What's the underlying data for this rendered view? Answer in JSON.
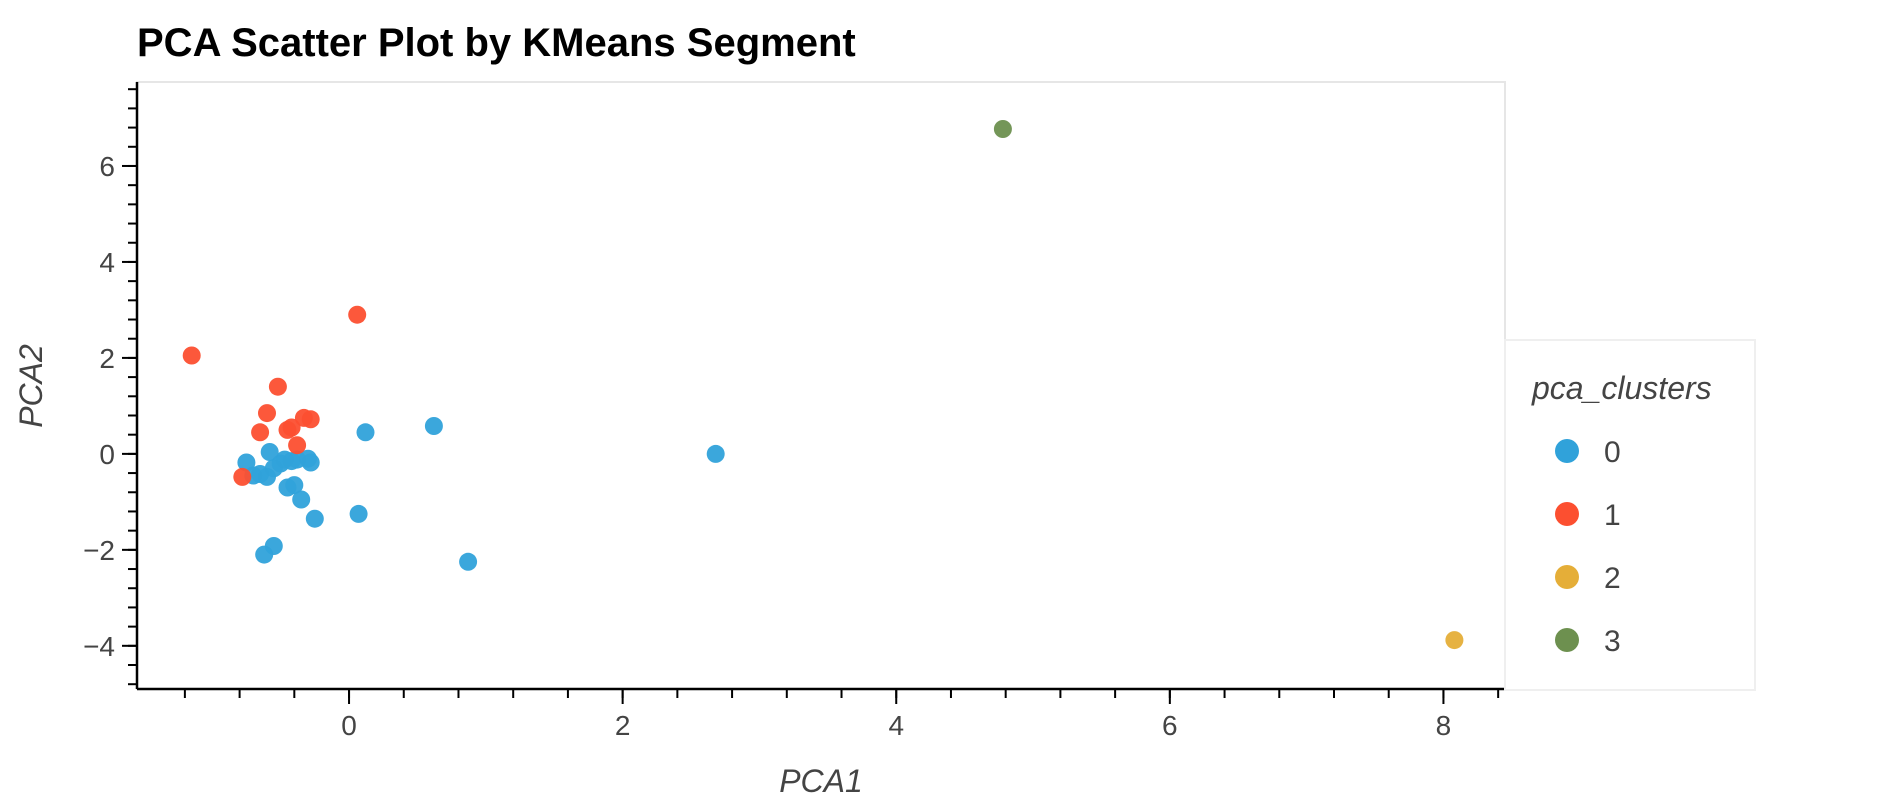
{
  "chart_data": {
    "type": "scatter",
    "title": "PCA Scatter Plot by KMeans Segment",
    "xlabel": "PCA1",
    "ylabel": "PCA2",
    "xlim": [
      -1.55,
      8.45
    ],
    "ylim": [
      -4.9,
      7.75
    ],
    "xticks": [
      0,
      2,
      4,
      6,
      8
    ],
    "yticks": [
      -4,
      -2,
      0,
      2,
      4,
      6
    ],
    "xtick_labels": [
      "0",
      "2",
      "4",
      "6",
      "8"
    ],
    "ytick_labels": [
      "−4",
      "−2",
      "0",
      "2",
      "4",
      "6"
    ],
    "grid": false,
    "legend": {
      "title": "pca_clusters",
      "placement": "right"
    },
    "series": [
      {
        "name": "0",
        "color": "#30a2da",
        "points": [
          [
            -0.75,
            -0.18
          ],
          [
            -0.7,
            -0.45
          ],
          [
            -0.65,
            -0.42
          ],
          [
            -0.6,
            -0.48
          ],
          [
            -0.58,
            0.04
          ],
          [
            -0.55,
            -0.3
          ],
          [
            -0.5,
            -0.2
          ],
          [
            -0.47,
            -0.12
          ],
          [
            -0.45,
            -0.7
          ],
          [
            -0.42,
            -0.15
          ],
          [
            -0.4,
            -0.65
          ],
          [
            -0.38,
            -0.12
          ],
          [
            -0.35,
            -0.95
          ],
          [
            -0.3,
            -0.1
          ],
          [
            -0.28,
            -0.18
          ],
          [
            -0.25,
            -1.35
          ],
          [
            0.07,
            -1.25
          ],
          [
            0.12,
            0.45
          ],
          [
            0.62,
            0.58
          ],
          [
            0.87,
            -2.25
          ],
          [
            -0.55,
            -1.92
          ],
          [
            -0.62,
            -2.1
          ],
          [
            2.68,
            0.0
          ]
        ]
      },
      {
        "name": "1",
        "color": "#fc4f30",
        "points": [
          [
            -1.15,
            2.05
          ],
          [
            0.06,
            2.9
          ],
          [
            -0.52,
            1.4
          ],
          [
            -0.6,
            0.85
          ],
          [
            -0.65,
            0.45
          ],
          [
            -0.45,
            0.5
          ],
          [
            -0.42,
            0.55
          ],
          [
            -0.33,
            0.75
          ],
          [
            -0.28,
            0.72
          ],
          [
            -0.38,
            0.18
          ],
          [
            -0.78,
            -0.48
          ]
        ]
      },
      {
        "name": "2",
        "color": "#e5ae38",
        "points": [
          [
            8.08,
            -3.88
          ]
        ]
      },
      {
        "name": "3",
        "color": "#6d904f",
        "points": [
          [
            4.78,
            6.77
          ]
        ]
      }
    ]
  }
}
